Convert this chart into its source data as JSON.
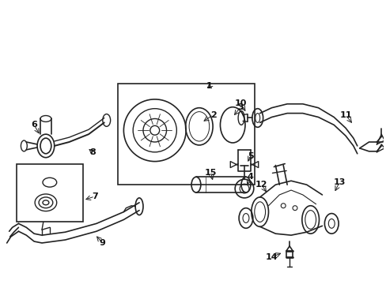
{
  "background": "#ffffff",
  "line_color": "#222222",
  "label_color": "#111111",
  "fig_width": 4.89,
  "fig_height": 3.6,
  "dpi": 100
}
